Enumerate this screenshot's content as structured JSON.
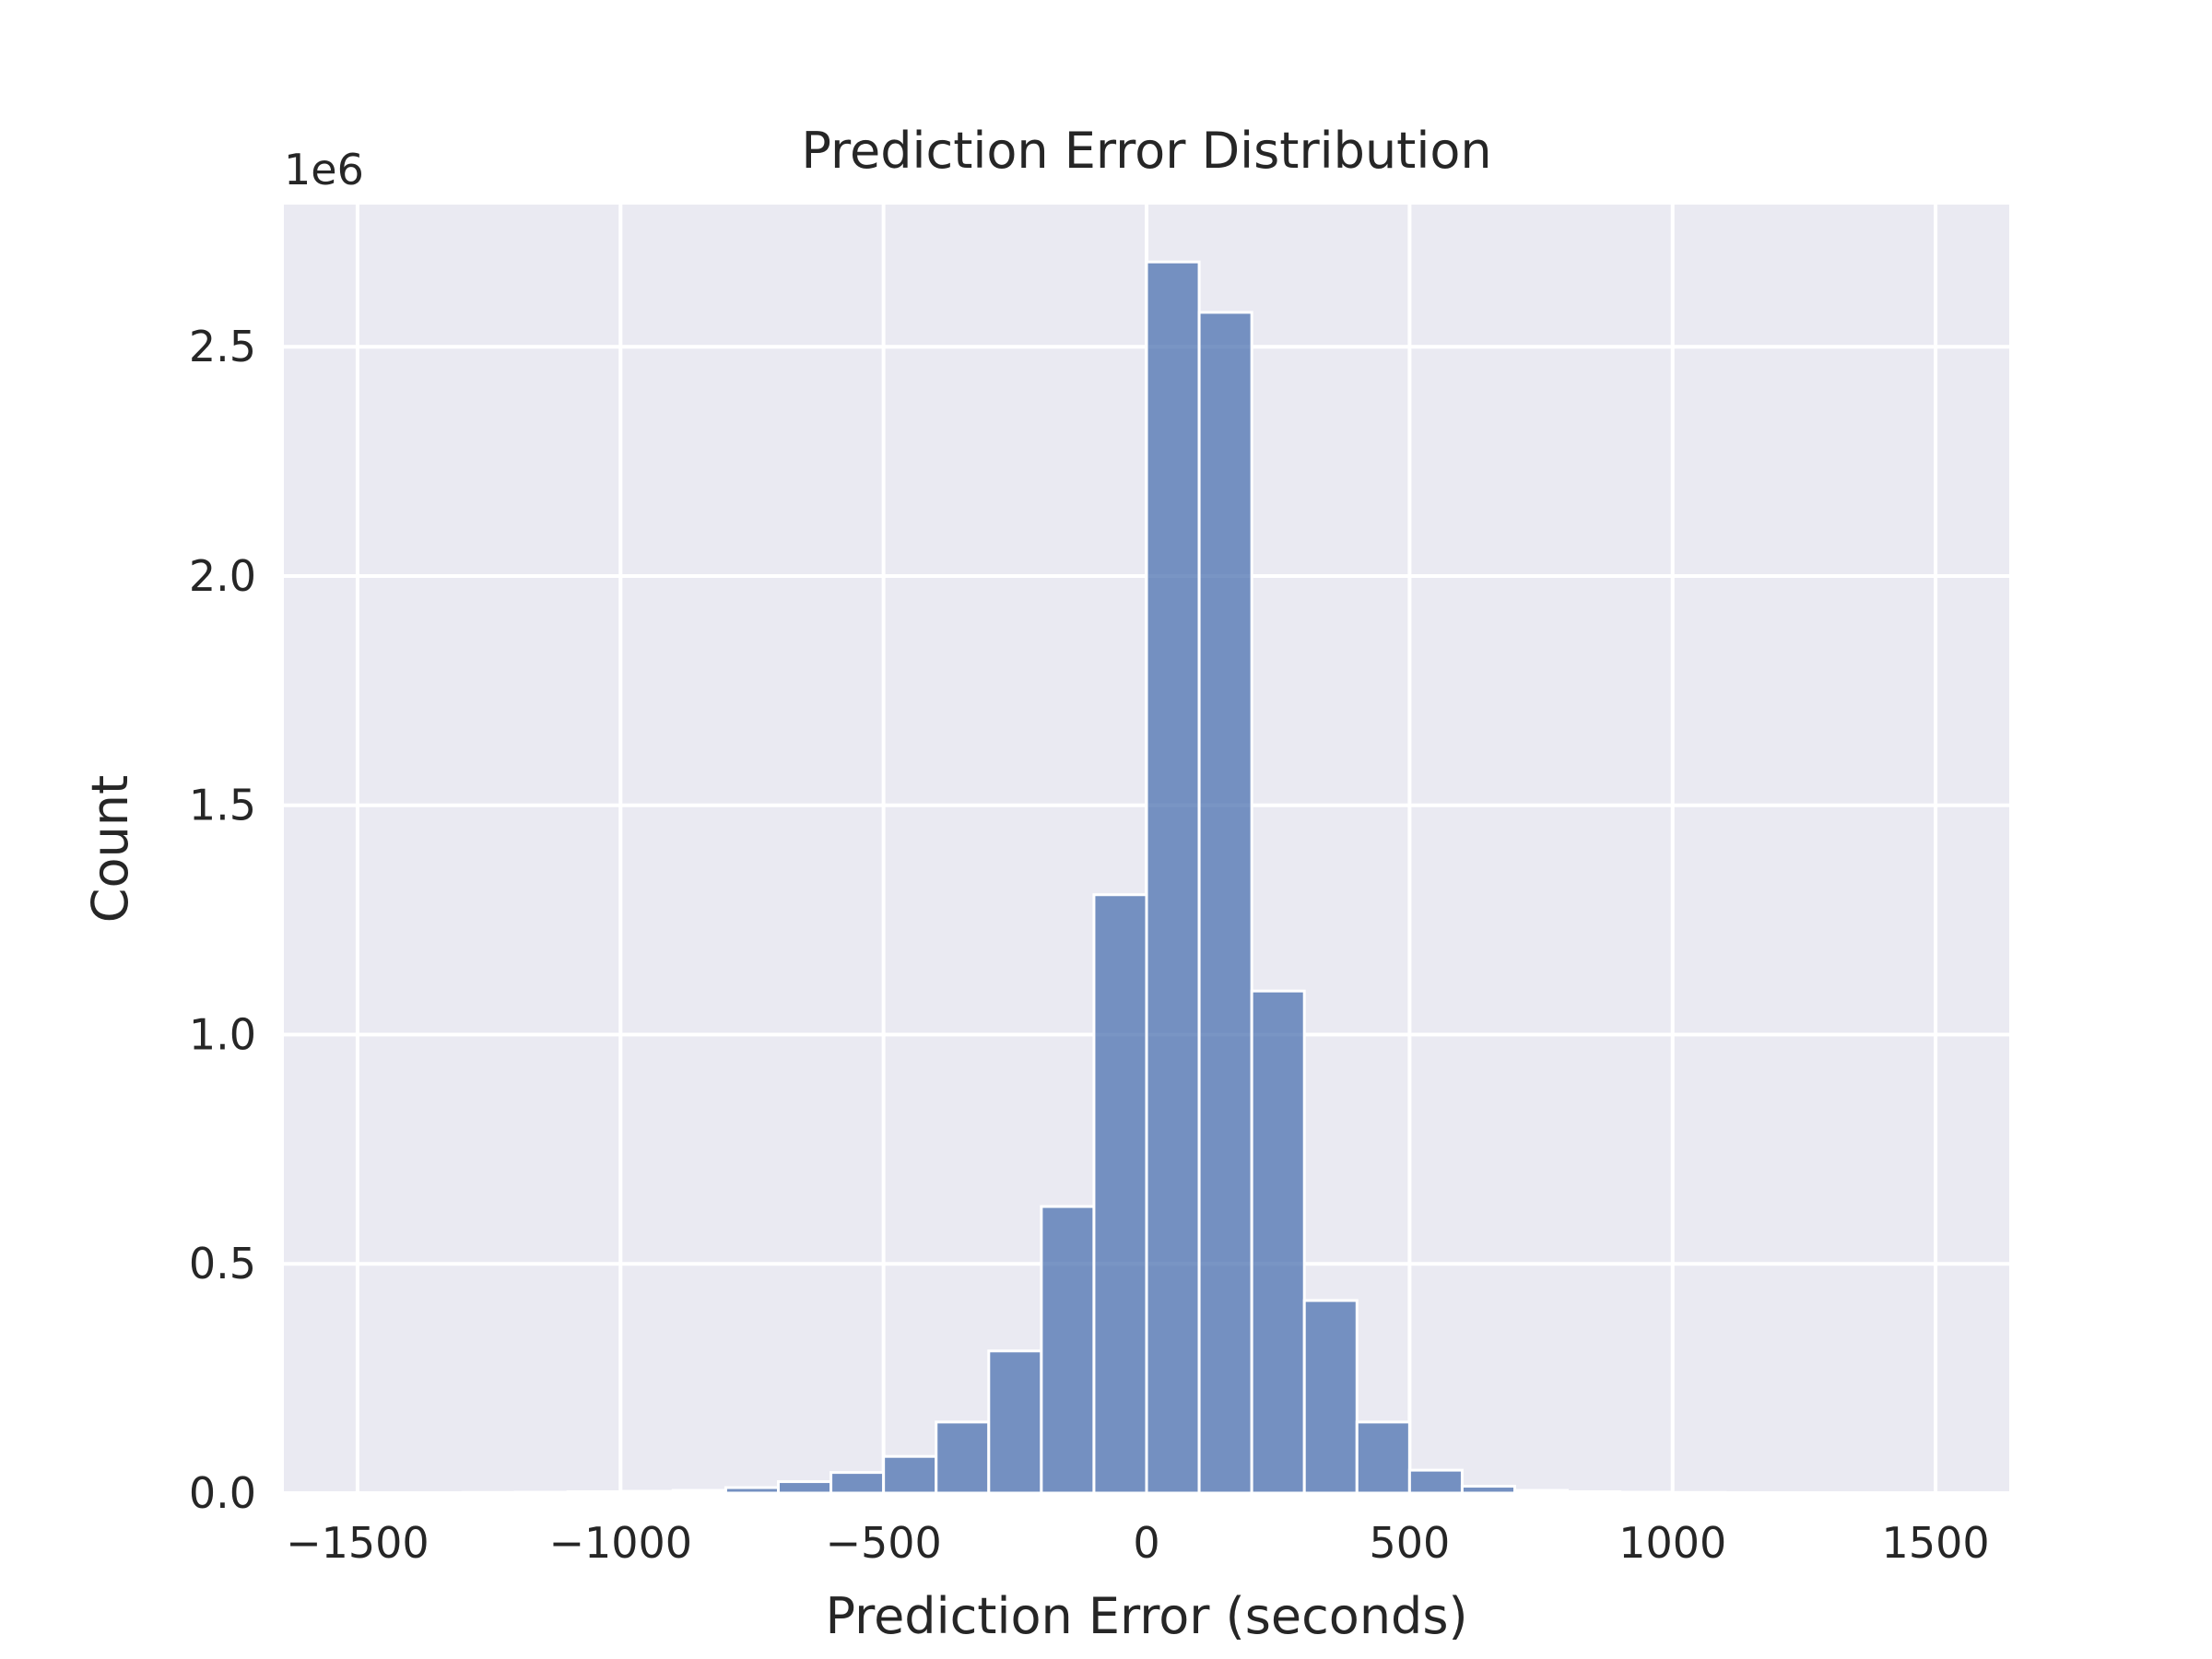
{
  "chart_data": {
    "type": "bar",
    "title": "Prediction Error Distribution",
    "xlabel": "Prediction Error (seconds)",
    "ylabel": "Count",
    "y_offset_label": "1e6",
    "xlim": [
      -1640,
      1640
    ],
    "ylim": [
      0,
      2.81
    ],
    "x_ticks": [
      -1500,
      -1000,
      -500,
      0,
      500,
      1000,
      1500
    ],
    "x_tick_labels": [
      "−1500",
      "−1000",
      "−500",
      "0",
      "500",
      "1000",
      "1500"
    ],
    "y_ticks": [
      0,
      0.5,
      1.0,
      1.5,
      2.0,
      2.5
    ],
    "y_tick_labels": [
      "0.0",
      "0.5",
      "1.0",
      "1.5",
      "2.0",
      "2.5"
    ],
    "grid": true,
    "bin_width": 100,
    "bin_edges": [
      -1500,
      -1400,
      -1300,
      -1200,
      -1100,
      -1000,
      -900,
      -800,
      -700,
      -600,
      -500,
      -400,
      -300,
      -200,
      -100,
      0,
      100,
      200,
      300,
      400,
      500,
      600,
      700,
      800,
      900,
      1000,
      1100,
      1200,
      1300,
      1400,
      1500
    ],
    "values": [
      0.0005,
      0.001,
      0.0015,
      0.002,
      0.003,
      0.004,
      0.006,
      0.012,
      0.025,
      0.045,
      0.08,
      0.155,
      0.31,
      0.625,
      1.305,
      2.685,
      2.575,
      1.095,
      0.42,
      0.155,
      0.05,
      0.015,
      0.006,
      0.003,
      0.002,
      0.0015,
      0.001,
      0.001,
      0.0005,
      0.0005
    ],
    "colors": {
      "bar": "#4c72b0",
      "bar_edge": "#ffffff",
      "plot_bg": "#eaeaf2",
      "grid": "#ffffff",
      "text": "#262626"
    }
  }
}
